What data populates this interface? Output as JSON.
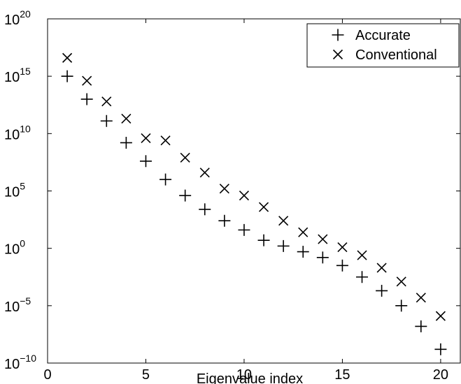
{
  "chart_data": {
    "type": "scatter",
    "title": "",
    "xlabel": "Eigenvalue index",
    "ylabel": "",
    "xlim": [
      0,
      21
    ],
    "ylim_log10": [
      -10,
      20
    ],
    "yscale": "log",
    "xticks": [
      "0",
      "5",
      "10",
      "15",
      "20"
    ],
    "yticks": [
      {
        "base": "10",
        "exp": "20"
      },
      {
        "base": "10",
        "exp": "15"
      },
      {
        "base": "10",
        "exp": "10"
      },
      {
        "base": "10",
        "exp": "5"
      },
      {
        "base": "10",
        "exp": "0"
      },
      {
        "base": "10",
        "exp": "−5"
      },
      {
        "base": "10",
        "exp": "−10"
      }
    ],
    "legend": {
      "position": "top-right"
    },
    "series": [
      {
        "name": "Accurate",
        "marker": "+",
        "x": [
          1,
          2,
          3,
          4,
          5,
          6,
          7,
          8,
          9,
          10,
          11,
          12,
          13,
          14,
          15,
          16,
          17,
          18,
          19,
          20
        ],
        "y_log10": [
          15.0,
          13.0,
          11.1,
          9.2,
          7.6,
          6.0,
          4.6,
          3.4,
          2.4,
          1.6,
          0.7,
          0.2,
          -0.3,
          -0.8,
          -1.5,
          -2.5,
          -3.7,
          -5.0,
          -6.8,
          -8.8
        ]
      },
      {
        "name": "Conventional",
        "marker": "x",
        "x": [
          1,
          2,
          3,
          4,
          5,
          6,
          7,
          8,
          9,
          10,
          11,
          12,
          13,
          14,
          15,
          16,
          17,
          18,
          19,
          20
        ],
        "y_log10": [
          16.6,
          14.6,
          12.8,
          11.3,
          9.6,
          9.4,
          7.9,
          6.6,
          5.2,
          4.6,
          3.6,
          2.4,
          1.4,
          0.8,
          0.1,
          -0.6,
          -1.7,
          -2.9,
          -4.3,
          -5.9
        ]
      }
    ]
  }
}
